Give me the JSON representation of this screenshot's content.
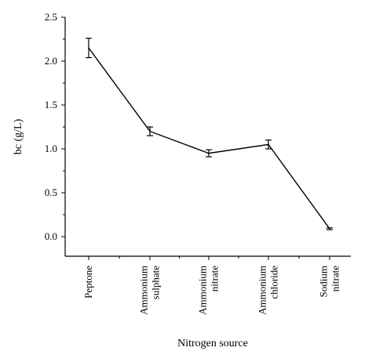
{
  "chart_data": {
    "type": "line",
    "xlabel": "Nitrogen source",
    "ylabel": "bc (g/L)",
    "ylim": [
      0,
      2.5
    ],
    "yticks": [
      "0.0",
      "0.5",
      "1.0",
      "1.5",
      "2.0",
      "2.5"
    ],
    "ytick_values": [
      0,
      0.5,
      1.0,
      1.5,
      2.0,
      2.5
    ],
    "categories": [
      [
        "Peptone"
      ],
      [
        "Ammonium",
        "sulphate"
      ],
      [
        "Ammonium",
        "nitrate"
      ],
      [
        "Ammonium",
        "chloride"
      ],
      [
        "Sodium",
        "nitrate"
      ]
    ],
    "values": [
      2.15,
      1.2,
      0.95,
      1.05,
      0.09
    ],
    "errors": [
      0.11,
      0.05,
      0.04,
      0.05,
      0.01
    ],
    "grid": false,
    "legend": "none"
  }
}
